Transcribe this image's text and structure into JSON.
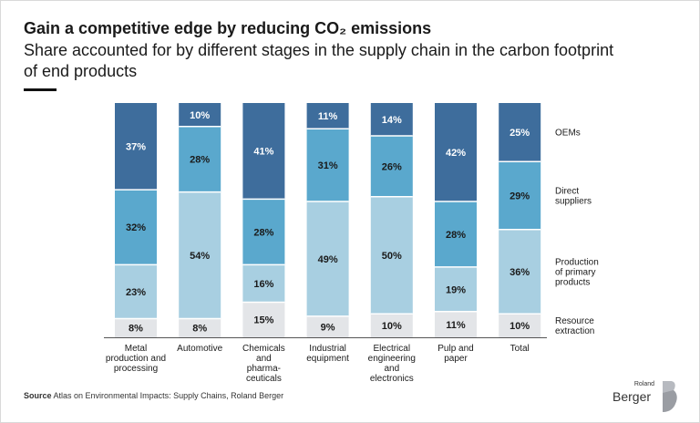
{
  "header": {
    "title": "Gain a competitive edge by reducing CO₂ emissions",
    "subtitle": "Share accounted for by different stages in the supply chain in the carbon footprint of end products"
  },
  "footer": {
    "source_label": "Source",
    "source_text": "Atlas on Environmental Impacts: Supply Chains, Roland Berger",
    "logo_small": "Roland",
    "logo_big": "Berger"
  },
  "colors": {
    "resource": "#e3e5e8",
    "primary": "#a8cfe1",
    "direct": "#5aa8cd",
    "oem": "#3e6d9c"
  },
  "chart_data": {
    "type": "bar",
    "stacked": true,
    "unit": "%",
    "ylim": [
      0,
      100
    ],
    "categories": [
      [
        "Metal",
        "production and",
        "processing"
      ],
      [
        "Automotive"
      ],
      [
        "Chemicals",
        "and",
        "pharma-",
        "ceuticals"
      ],
      [
        "Industrial",
        "equipment"
      ],
      [
        "Electrical",
        "engineering",
        "and",
        "electronics"
      ],
      [
        "Pulp and",
        "paper"
      ],
      [
        "Total"
      ]
    ],
    "series": [
      {
        "name": "Resource extraction",
        "legend_lines": [
          "Resource",
          "extraction"
        ],
        "color_key": "resource",
        "values": [
          8,
          8,
          15,
          9,
          10,
          11,
          10
        ]
      },
      {
        "name": "Production of primary products",
        "legend_lines": [
          "Production",
          "of primary",
          "products"
        ],
        "color_key": "primary",
        "values": [
          23,
          54,
          16,
          49,
          50,
          19,
          36
        ]
      },
      {
        "name": "Direct suppliers",
        "legend_lines": [
          "Direct",
          "suppliers"
        ],
        "color_key": "direct",
        "values": [
          32,
          28,
          28,
          31,
          26,
          28,
          29
        ]
      },
      {
        "name": "OEMs",
        "legend_lines": [
          "OEMs"
        ],
        "color_key": "oem",
        "values": [
          37,
          10,
          41,
          11,
          14,
          42,
          25
        ]
      }
    ]
  }
}
